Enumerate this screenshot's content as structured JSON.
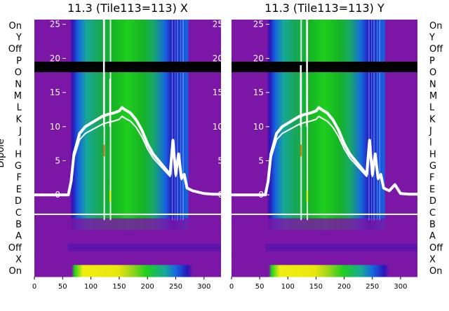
{
  "chart_data": [
    {
      "type": "heatmap",
      "title": "11.3 (Tile113=113) X",
      "ylabel": "Dipole",
      "row_labels": [
        "On",
        "Y",
        "Off",
        "P",
        "O",
        "N",
        "M",
        "L",
        "K",
        "J",
        "I",
        "H",
        "G",
        "F",
        "E",
        "D",
        "C",
        "B",
        "A",
        "Off",
        "X",
        "On"
      ],
      "x_ticks": [
        0,
        50,
        100,
        150,
        200,
        250,
        300
      ],
      "xlim": [
        0,
        330
      ],
      "overlay_y_ticks": [
        0,
        5,
        10,
        15,
        20,
        25
      ],
      "overlay_ylim": [
        -1,
        27.5
      ],
      "colormap": "spectral",
      "spectrum_band": [
        70,
        270
      ],
      "bright_rfi_x": [
        123,
        134
      ],
      "overlay_line": {
        "x": [
          0,
          60,
          65,
          70,
          80,
          90,
          100,
          110,
          120,
          130,
          140,
          150,
          155,
          160,
          170,
          180,
          190,
          200,
          210,
          220,
          230,
          240,
          245,
          250,
          255,
          260,
          265,
          270,
          280,
          290,
          300,
          315,
          330
        ],
        "y": [
          0,
          0,
          2,
          6,
          9,
          10,
          10.5,
          11,
          11.5,
          11.8,
          12,
          12.3,
          12.8,
          12.5,
          12,
          11,
          9.5,
          7.5,
          6,
          5,
          4,
          3,
          8,
          3,
          6,
          2.5,
          3,
          1,
          0.6,
          0.4,
          0.2,
          0.1,
          0.1
        ]
      },
      "spikes": [
        {
          "x": 123,
          "y": 27
        },
        {
          "x": 134,
          "y": 17
        }
      ]
    },
    {
      "type": "heatmap",
      "title": "11.3 (Tile113=113) Y",
      "ylabel": "",
      "row_labels": [
        "On",
        "Y",
        "Off",
        "P",
        "O",
        "N",
        "M",
        "L",
        "K",
        "J",
        "I",
        "H",
        "G",
        "F",
        "E",
        "D",
        "C",
        "B",
        "A",
        "Off",
        "X",
        "On"
      ],
      "x_ticks": [
        0,
        50,
        100,
        150,
        200,
        250,
        300
      ],
      "xlim": [
        0,
        330
      ],
      "overlay_y_ticks": [
        0,
        5,
        10,
        15,
        20,
        25
      ],
      "overlay_ylim": [
        -1,
        27.5
      ],
      "colormap": "spectral",
      "spectrum_band": [
        70,
        270
      ],
      "bright_rfi_x": [
        123,
        134
      ],
      "overlay_line": {
        "x": [
          0,
          60,
          65,
          70,
          80,
          90,
          100,
          110,
          120,
          130,
          140,
          150,
          155,
          160,
          170,
          180,
          190,
          200,
          210,
          220,
          230,
          240,
          245,
          250,
          255,
          260,
          265,
          270,
          280,
          290,
          300,
          315,
          330
        ],
        "y": [
          0,
          0,
          2,
          6,
          9,
          10,
          10.5,
          11,
          11.5,
          11.8,
          12,
          12.3,
          12.8,
          12.5,
          12,
          11,
          9.5,
          7.5,
          6,
          5,
          4,
          3,
          8,
          3,
          6,
          2.5,
          3,
          1,
          0.6,
          1.5,
          0.2,
          0.1,
          0.1
        ]
      },
      "spikes": [
        {
          "x": 123,
          "y": 19
        },
        {
          "x": 134,
          "y": 27
        }
      ]
    }
  ],
  "colors": {
    "background_purple": "#7b16a6",
    "deep_blue": "#2a15b8",
    "blue": "#1565e0",
    "teal": "#17a79a",
    "green": "#16b324",
    "bright_green": "#1ecf1e",
    "yellow": "#f0ee10",
    "black_band": "#000000",
    "overlay_line": "#ffffff"
  }
}
